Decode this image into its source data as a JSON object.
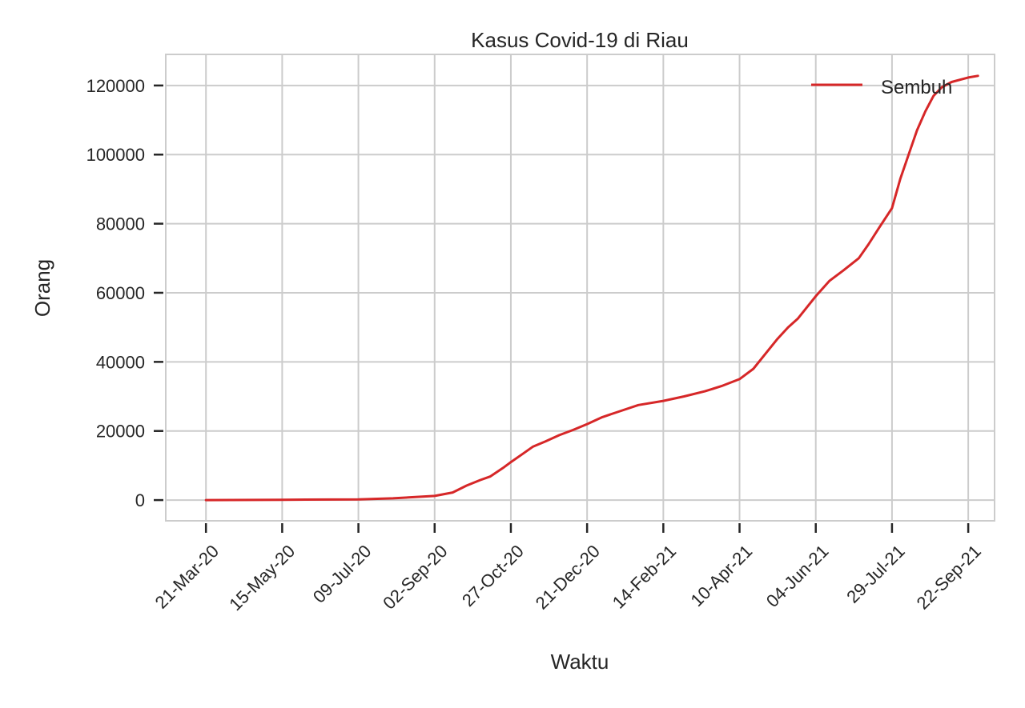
{
  "chart_data": {
    "type": "line",
    "title": "Kasus Covid-19 di Riau",
    "xlabel": "Waktu",
    "ylabel": "Orang",
    "x_tick_labels": [
      "21-Mar-20",
      "15-May-20",
      "09-Jul-20",
      "02-Sep-20",
      "27-Oct-20",
      "21-Dec-20",
      "14-Feb-21",
      "10-Apr-21",
      "04-Jun-21",
      "29-Jul-21",
      "22-Sep-21"
    ],
    "x_ticks": [
      "2020-03-21",
      "2020-05-15",
      "2020-07-09",
      "2020-09-02",
      "2020-10-27",
      "2020-12-21",
      "2021-02-14",
      "2021-04-10",
      "2021-06-04",
      "2021-07-29",
      "2021-09-22"
    ],
    "x_range": [
      "2020-02-21",
      "2021-10-11"
    ],
    "y_ticks": [
      0,
      20000,
      40000,
      60000,
      80000,
      100000,
      120000
    ],
    "ylim": [
      -6000,
      129000
    ],
    "grid": true,
    "legend_position": "top-right",
    "series": [
      {
        "name": "Sembuh",
        "color": "#d62728",
        "x": [
          "2020-03-21",
          "2020-05-15",
          "2020-07-09",
          "2020-08-03",
          "2020-09-02",
          "2020-09-15",
          "2020-09-25",
          "2020-10-05",
          "2020-10-12",
          "2020-10-22",
          "2020-10-27",
          "2020-11-05",
          "2020-11-12",
          "2020-11-21",
          "2020-12-01",
          "2020-12-11",
          "2020-12-21",
          "2021-01-01",
          "2021-01-12",
          "2021-01-27",
          "2021-02-14",
          "2021-03-01",
          "2021-03-16",
          "2021-03-28",
          "2021-04-10",
          "2021-04-20",
          "2021-04-28",
          "2021-05-07",
          "2021-05-15",
          "2021-05-22",
          "2021-06-04",
          "2021-06-14",
          "2021-06-24",
          "2021-07-05",
          "2021-07-12",
          "2021-07-20",
          "2021-07-29",
          "2021-08-04",
          "2021-08-10",
          "2021-08-16",
          "2021-08-22",
          "2021-08-28",
          "2021-09-03",
          "2021-09-10",
          "2021-09-22",
          "2021-09-29"
        ],
        "y": [
          0,
          100,
          200,
          500,
          1200,
          2200,
          4200,
          5800,
          6800,
          9500,
          11000,
          13500,
          15500,
          17000,
          18800,
          20300,
          22000,
          24000,
          25500,
          27500,
          28700,
          30000,
          31500,
          33000,
          35000,
          38000,
          42000,
          46500,
          50000,
          52500,
          59000,
          63500,
          66500,
          70000,
          74000,
          79000,
          84500,
          93000,
          100000,
          107000,
          112500,
          117000,
          119500,
          121000,
          122300,
          122800
        ]
      }
    ]
  }
}
